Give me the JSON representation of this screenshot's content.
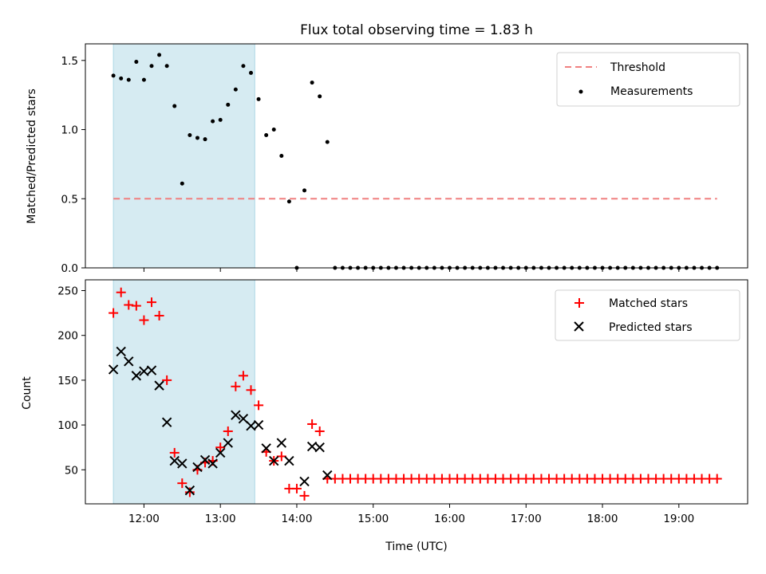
{
  "chart_data": [
    {
      "type": "scatter",
      "title": "Flux total observing time = 1.83 h",
      "xlabel": "",
      "ylabel": "Matched/Predicted stars",
      "xlim": [
        "11:14",
        "19:54"
      ],
      "ylim": [
        0,
        1.62
      ],
      "yticks": [
        0.0,
        0.5,
        1.0,
        1.5
      ],
      "ytick_labels": [
        "0.0",
        "0.5",
        "1.0",
        "1.5"
      ],
      "legend": {
        "position": "top-right",
        "entries": [
          "Threshold",
          "Measurements"
        ]
      },
      "shaded_interval": {
        "start": "11:36",
        "end": "13:27",
        "color": "#add8e6"
      },
      "threshold": {
        "name": "Threshold",
        "value": 0.5,
        "x_start": "11:36",
        "x_end": "19:30",
        "color": "#f08080"
      },
      "series": [
        {
          "name": "Measurements",
          "color": "#000000",
          "marker": "dot",
          "points": [
            [
              "11:36",
              1.39
            ],
            [
              "11:42",
              1.37
            ],
            [
              "11:48",
              1.36
            ],
            [
              "11:54",
              1.49
            ],
            [
              "12:00",
              1.36
            ],
            [
              "12:06",
              1.46
            ],
            [
              "12:12",
              1.54
            ],
            [
              "12:18",
              1.46
            ],
            [
              "12:24",
              1.17
            ],
            [
              "12:30",
              0.61
            ],
            [
              "12:36",
              0.96
            ],
            [
              "12:42",
              0.94
            ],
            [
              "12:48",
              0.93
            ],
            [
              "12:54",
              1.06
            ],
            [
              "13:00",
              1.07
            ],
            [
              "13:06",
              1.18
            ],
            [
              "13:12",
              1.29
            ],
            [
              "13:18",
              1.46
            ],
            [
              "13:24",
              1.41
            ],
            [
              "13:30",
              1.22
            ],
            [
              "13:36",
              0.96
            ],
            [
              "13:42",
              1.0
            ],
            [
              "13:48",
              0.81
            ],
            [
              "13:54",
              0.48
            ],
            [
              "14:00",
              0.0
            ],
            [
              "14:06",
              0.56
            ],
            [
              "14:12",
              1.34
            ],
            [
              "14:18",
              1.24
            ],
            [
              "14:24",
              0.91
            ],
            [
              "14:30",
              0.0
            ],
            [
              "14:36",
              0.0
            ],
            [
              "14:42",
              0.0
            ],
            [
              "14:48",
              0.0
            ],
            [
              "14:54",
              0.0
            ],
            [
              "15:00",
              0.0
            ],
            [
              "15:06",
              0.0
            ],
            [
              "15:12",
              0.0
            ],
            [
              "15:18",
              0.0
            ],
            [
              "15:24",
              0.0
            ],
            [
              "15:30",
              0.0
            ],
            [
              "15:36",
              0.0
            ],
            [
              "15:42",
              0.0
            ],
            [
              "15:48",
              0.0
            ],
            [
              "15:54",
              0.0
            ],
            [
              "16:00",
              0.0
            ],
            [
              "16:06",
              0.0
            ],
            [
              "16:12",
              0.0
            ],
            [
              "16:18",
              0.0
            ],
            [
              "16:24",
              0.0
            ],
            [
              "16:30",
              0.0
            ],
            [
              "16:36",
              0.0
            ],
            [
              "16:42",
              0.0
            ],
            [
              "16:48",
              0.0
            ],
            [
              "16:54",
              0.0
            ],
            [
              "17:00",
              0.0
            ],
            [
              "17:06",
              0.0
            ],
            [
              "17:12",
              0.0
            ],
            [
              "17:18",
              0.0
            ],
            [
              "17:24",
              0.0
            ],
            [
              "17:30",
              0.0
            ],
            [
              "17:36",
              0.0
            ],
            [
              "17:42",
              0.0
            ],
            [
              "17:48",
              0.0
            ],
            [
              "17:54",
              0.0
            ],
            [
              "18:00",
              0.0
            ],
            [
              "18:06",
              0.0
            ],
            [
              "18:12",
              0.0
            ],
            [
              "18:18",
              0.0
            ],
            [
              "18:24",
              0.0
            ],
            [
              "18:30",
              0.0
            ],
            [
              "18:36",
              0.0
            ],
            [
              "18:42",
              0.0
            ],
            [
              "18:48",
              0.0
            ],
            [
              "18:54",
              0.0
            ],
            [
              "19:00",
              0.0
            ],
            [
              "19:06",
              0.0
            ],
            [
              "19:12",
              0.0
            ],
            [
              "19:18",
              0.0
            ],
            [
              "19:24",
              0.0
            ],
            [
              "19:30",
              0.0
            ]
          ]
        }
      ]
    },
    {
      "type": "scatter",
      "title": "",
      "xlabel": "Time (UTC)",
      "ylabel": "Count",
      "xlim": [
        "11:14",
        "19:54"
      ],
      "ylim": [
        12,
        262
      ],
      "xticks": [
        "12:00",
        "13:00",
        "14:00",
        "15:00",
        "16:00",
        "17:00",
        "18:00",
        "19:00"
      ],
      "yticks": [
        50,
        100,
        150,
        200,
        250
      ],
      "ytick_labels": [
        "50",
        "100",
        "150",
        "200",
        "250"
      ],
      "legend": {
        "position": "top-right",
        "entries": [
          "Matched stars",
          "Predicted stars"
        ]
      },
      "shaded_interval": {
        "start": "11:36",
        "end": "13:27",
        "color": "#add8e6"
      },
      "series": [
        {
          "name": "Matched stars",
          "color": "#ff0000",
          "marker": "plus",
          "points": [
            [
              "11:36",
              225
            ],
            [
              "11:42",
              248
            ],
            [
              "11:48",
              234
            ],
            [
              "11:54",
              233
            ],
            [
              "12:00",
              217
            ],
            [
              "12:06",
              237
            ],
            [
              "12:12",
              222
            ],
            [
              "12:18",
              150
            ],
            [
              "12:24",
              69
            ],
            [
              "12:30",
              35
            ],
            [
              "12:36",
              25
            ],
            [
              "12:42",
              50
            ],
            [
              "12:48",
              58
            ],
            [
              "12:54",
              60
            ],
            [
              "13:00",
              75
            ],
            [
              "13:06",
              93
            ],
            [
              "13:12",
              143
            ],
            [
              "13:18",
              155
            ],
            [
              "13:24",
              139
            ],
            [
              "13:30",
              122
            ],
            [
              "13:36",
              70
            ],
            [
              "13:42",
              60
            ],
            [
              "13:48",
              65
            ],
            [
              "13:54",
              29
            ],
            [
              "14:00",
              29
            ],
            [
              "14:06",
              21
            ],
            [
              "14:12",
              101
            ],
            [
              "14:18",
              93
            ],
            [
              "14:24",
              40
            ],
            [
              "14:30",
              40
            ],
            [
              "14:36",
              40
            ],
            [
              "14:42",
              40
            ],
            [
              "14:48",
              40
            ],
            [
              "14:54",
              40
            ],
            [
              "15:00",
              40
            ],
            [
              "15:06",
              40
            ],
            [
              "15:12",
              40
            ],
            [
              "15:18",
              40
            ],
            [
              "15:24",
              40
            ],
            [
              "15:30",
              40
            ],
            [
              "15:36",
              40
            ],
            [
              "15:42",
              40
            ],
            [
              "15:48",
              40
            ],
            [
              "15:54",
              40
            ],
            [
              "16:00",
              40
            ],
            [
              "16:06",
              40
            ],
            [
              "16:12",
              40
            ],
            [
              "16:18",
              40
            ],
            [
              "16:24",
              40
            ],
            [
              "16:30",
              40
            ],
            [
              "16:36",
              40
            ],
            [
              "16:42",
              40
            ],
            [
              "16:48",
              40
            ],
            [
              "16:54",
              40
            ],
            [
              "17:00",
              40
            ],
            [
              "17:06",
              40
            ],
            [
              "17:12",
              40
            ],
            [
              "17:18",
              40
            ],
            [
              "17:24",
              40
            ],
            [
              "17:30",
              40
            ],
            [
              "17:36",
              40
            ],
            [
              "17:42",
              40
            ],
            [
              "17:48",
              40
            ],
            [
              "17:54",
              40
            ],
            [
              "18:00",
              40
            ],
            [
              "18:06",
              40
            ],
            [
              "18:12",
              40
            ],
            [
              "18:18",
              40
            ],
            [
              "18:24",
              40
            ],
            [
              "18:30",
              40
            ],
            [
              "18:36",
              40
            ],
            [
              "18:42",
              40
            ],
            [
              "18:48",
              40
            ],
            [
              "18:54",
              40
            ],
            [
              "19:00",
              40
            ],
            [
              "19:06",
              40
            ],
            [
              "19:12",
              40
            ],
            [
              "19:18",
              40
            ],
            [
              "19:24",
              40
            ],
            [
              "19:30",
              40
            ]
          ]
        },
        {
          "name": "Predicted stars",
          "color": "#000000",
          "marker": "x",
          "points": [
            [
              "11:36",
              162
            ],
            [
              "11:42",
              182
            ],
            [
              "11:48",
              171
            ],
            [
              "11:54",
              155
            ],
            [
              "12:00",
              160
            ],
            [
              "12:06",
              161
            ],
            [
              "12:12",
              144
            ],
            [
              "12:18",
              103
            ],
            [
              "12:24",
              60
            ],
            [
              "12:30",
              57
            ],
            [
              "12:36",
              27
            ],
            [
              "12:42",
              53
            ],
            [
              "12:48",
              61
            ],
            [
              "12:54",
              57
            ],
            [
              "13:00",
              69
            ],
            [
              "13:06",
              80
            ],
            [
              "13:12",
              111
            ],
            [
              "13:18",
              107
            ],
            [
              "13:24",
              99
            ],
            [
              "13:30",
              100
            ],
            [
              "13:36",
              74
            ],
            [
              "13:42",
              60
            ],
            [
              "13:48",
              80
            ],
            [
              "13:54",
              60
            ],
            [
              "14:06",
              37
            ],
            [
              "14:12",
              76
            ],
            [
              "14:18",
              75
            ],
            [
              "14:24",
              44
            ]
          ]
        }
      ]
    }
  ]
}
